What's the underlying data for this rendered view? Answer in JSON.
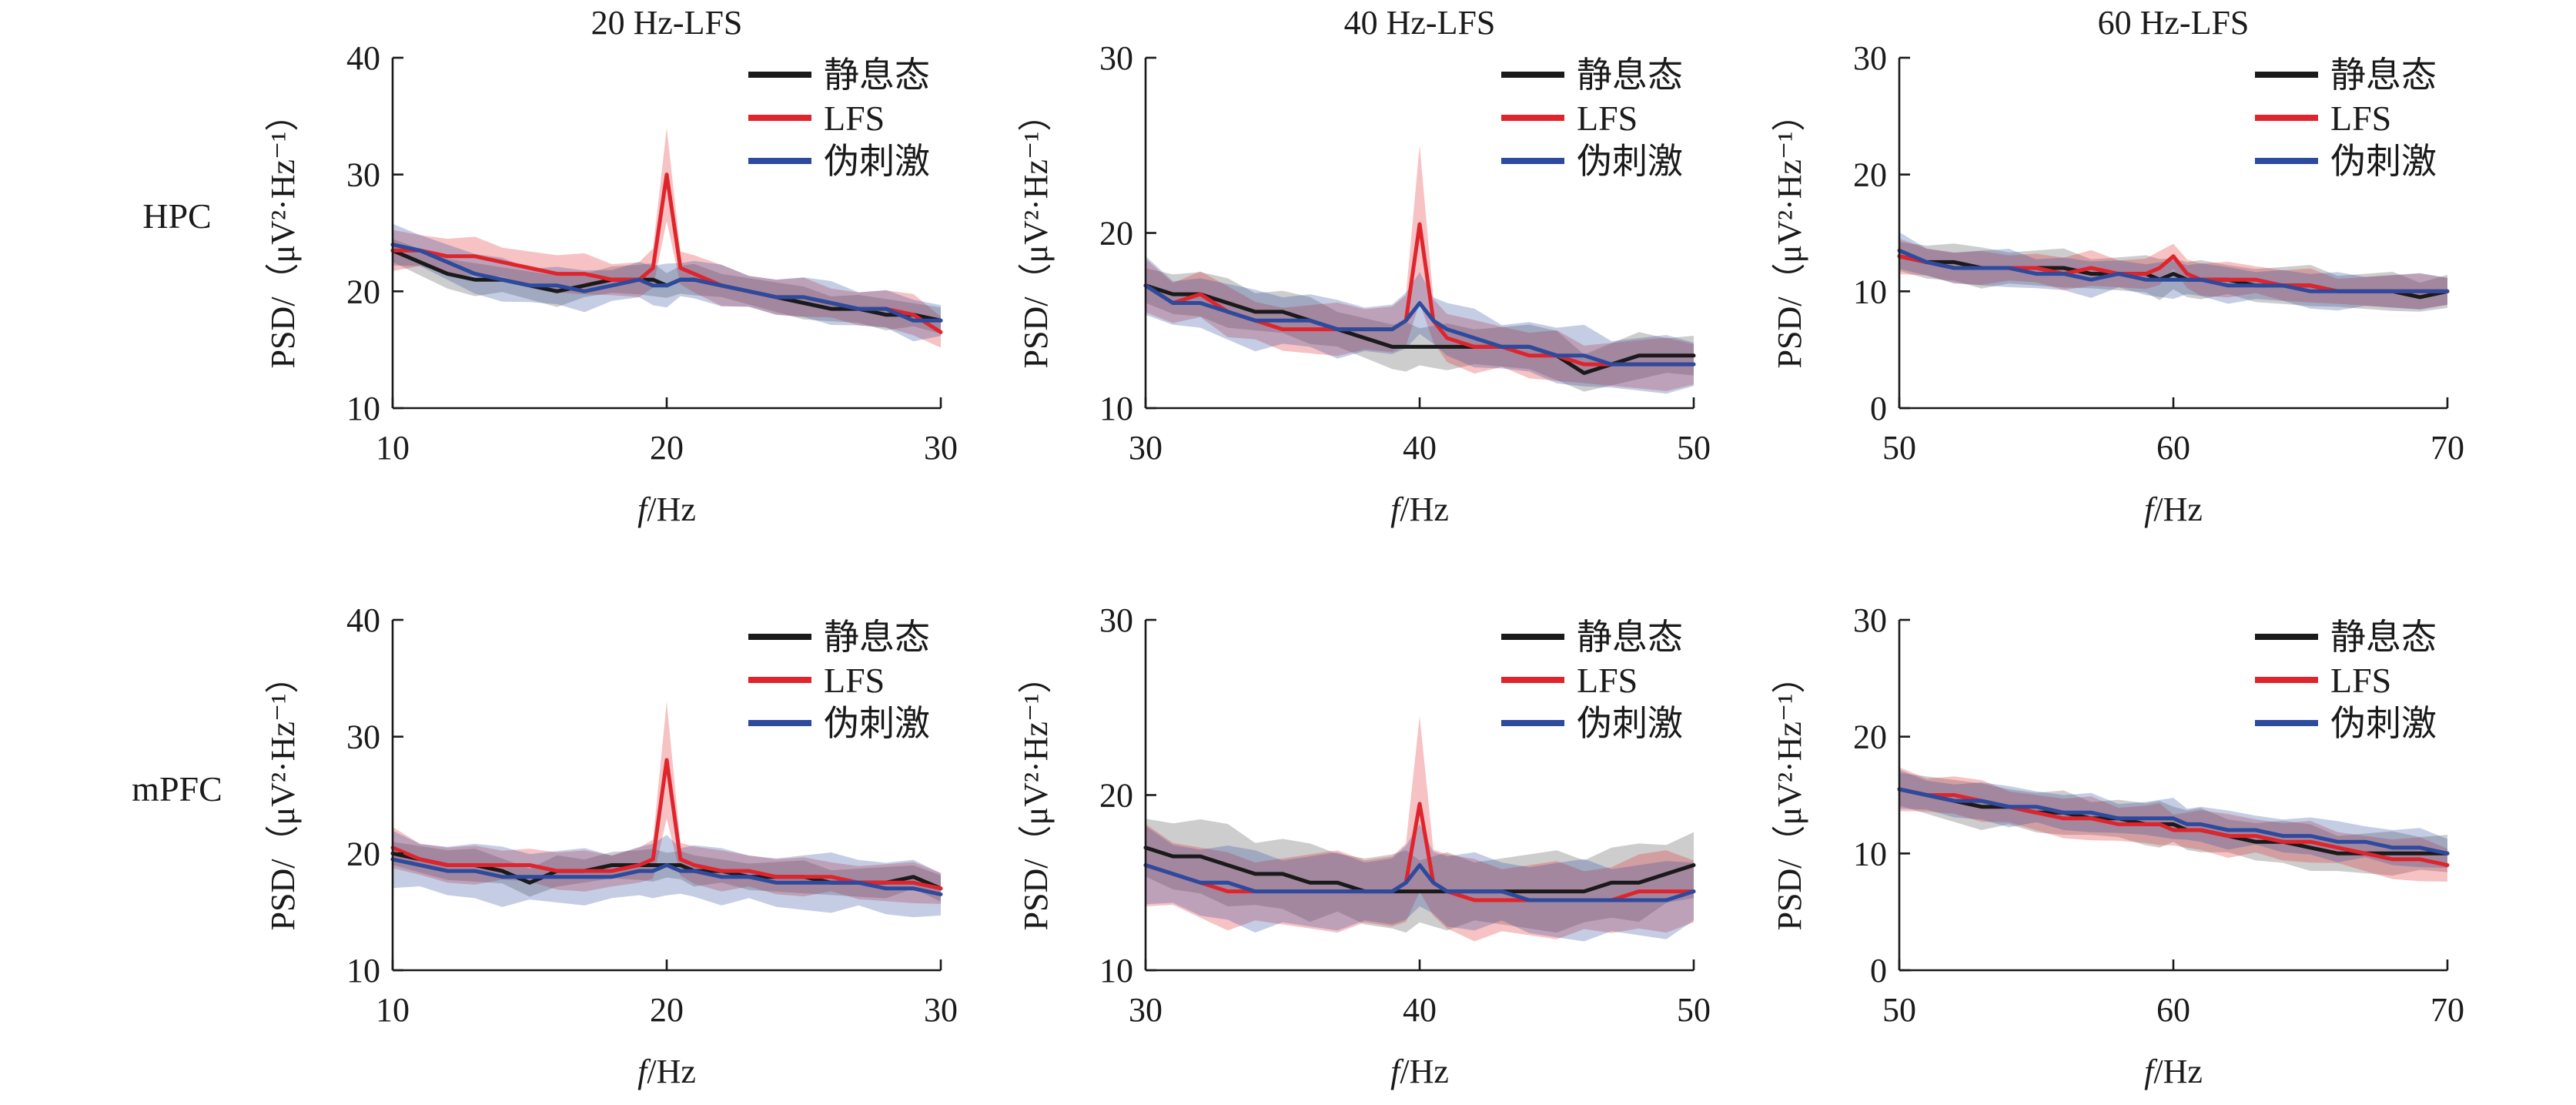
{
  "colors": {
    "静息态": "#1a1a1a",
    "LFS": "#e0242c",
    "伪刺激": "#2c4a9e"
  },
  "row_labels": [
    "HPC",
    "mPFC"
  ],
  "chart_data": [
    {
      "type": "line",
      "title": "20 Hz-LFS",
      "row": "HPC",
      "xlabel_italic": "f",
      "xlabel_unit": "/Hz",
      "ylabel": "PSD/（μV²·Hz⁻¹）",
      "xlim": [
        10,
        30
      ],
      "ylim": [
        10,
        40
      ],
      "xticks": [
        10,
        20,
        30
      ],
      "yticks": [
        10,
        20,
        30,
        40
      ],
      "legend": "top-right",
      "x": [
        10,
        11,
        12,
        13,
        14,
        15,
        16,
        17,
        18,
        19,
        19.5,
        20,
        20.5,
        21,
        22,
        23,
        24,
        25,
        26,
        27,
        28,
        29,
        30
      ],
      "series": [
        {
          "name": "静息态",
          "values": [
            23.5,
            22.5,
            21.5,
            21,
            21,
            20.5,
            20,
            20.5,
            21,
            21,
            21,
            20.5,
            21,
            21,
            20.5,
            20,
            19.5,
            19,
            18.5,
            18.5,
            18,
            18,
            17.5
          ],
          "band": 1.2
        },
        {
          "name": "LFS",
          "values": [
            23.5,
            23.5,
            23,
            23,
            22.5,
            22,
            21.5,
            21.5,
            21,
            21,
            22,
            30,
            22,
            21.5,
            20.5,
            20,
            19.5,
            19.5,
            19,
            18.5,
            18.5,
            18,
            16.5
          ],
          "band": 1.5,
          "peak_band": 4
        },
        {
          "name": "伪刺激",
          "values": [
            24,
            23.5,
            22.5,
            21.5,
            21,
            20.5,
            20.5,
            20,
            20.5,
            21,
            20.5,
            20.5,
            21,
            21,
            20.5,
            20,
            19.5,
            19.5,
            19,
            18.5,
            18.5,
            17.5,
            17.5
          ],
          "band": 1.6
        }
      ]
    },
    {
      "type": "line",
      "title": "40 Hz-LFS",
      "row": "HPC",
      "xlabel_italic": "f",
      "xlabel_unit": "/Hz",
      "ylabel": "PSD/（μV²·Hz⁻¹）",
      "xlim": [
        30,
        50
      ],
      "ylim": [
        10,
        30
      ],
      "xticks": [
        30,
        40,
        50
      ],
      "yticks": [
        10,
        20,
        30
      ],
      "legend": "top-right",
      "x": [
        30,
        31,
        32,
        33,
        34,
        35,
        36,
        37,
        38,
        39,
        39.5,
        40,
        40.5,
        41,
        42,
        43,
        44,
        45,
        46,
        47,
        48,
        49,
        50
      ],
      "series": [
        {
          "name": "静息态",
          "values": [
            17,
            16.5,
            16.5,
            16,
            15.5,
            15.5,
            15,
            14.5,
            14,
            13.5,
            13.5,
            13.5,
            13.5,
            13.5,
            13.5,
            13.5,
            13.5,
            13,
            12,
            12.5,
            13,
            13,
            13
          ],
          "band": 1.2
        },
        {
          "name": "LFS",
          "values": [
            17,
            16,
            16.5,
            15.5,
            15,
            14.5,
            14.5,
            14.5,
            14.5,
            14.5,
            15,
            20.5,
            15,
            14,
            13.5,
            13.5,
            13,
            13,
            12.5,
            12.5,
            12.5,
            12.5,
            12.5
          ],
          "band": 1.3,
          "peak_band": 4.5
        },
        {
          "name": "伪刺激",
          "values": [
            17,
            16,
            16,
            15.5,
            15,
            15,
            15,
            14.5,
            14.5,
            14.5,
            15,
            16,
            15,
            14.5,
            14,
            13.5,
            13.5,
            13,
            13,
            12.5,
            12.5,
            12.5,
            12.5
          ],
          "band": 1.5
        }
      ]
    },
    {
      "type": "line",
      "title": "60 Hz-LFS",
      "row": "HPC",
      "xlabel_italic": "f",
      "xlabel_unit": "/Hz",
      "ylabel": "PSD/（μV²·Hz⁻¹）",
      "xlim": [
        50,
        70
      ],
      "ylim": [
        0,
        30
      ],
      "xticks": [
        50,
        60,
        70
      ],
      "yticks": [
        0,
        10,
        20,
        30
      ],
      "legend": "top-right",
      "x": [
        50,
        51,
        52,
        53,
        54,
        55,
        56,
        57,
        58,
        59,
        59.5,
        60,
        60.5,
        61,
        62,
        63,
        64,
        65,
        66,
        67,
        68,
        69,
        70
      ],
      "series": [
        {
          "name": "静息态",
          "values": [
            13,
            12.5,
            12.5,
            12,
            12,
            12,
            12,
            11.5,
            11.5,
            11.5,
            11,
            11.5,
            11,
            11,
            11,
            10.5,
            10.5,
            10.5,
            10,
            10,
            10,
            9.5,
            10
          ],
          "band": 1.5
        },
        {
          "name": "LFS",
          "values": [
            13,
            12.5,
            12,
            12,
            12,
            12,
            11.5,
            12,
            11.5,
            11.5,
            12,
            13,
            11.5,
            11,
            11,
            11,
            10.5,
            10.5,
            10,
            10,
            10,
            10,
            10
          ],
          "band": 1.3
        },
        {
          "name": "伪刺激",
          "values": [
            13.5,
            12.5,
            12,
            12,
            12,
            11.5,
            11.5,
            11,
            11.5,
            11,
            11,
            11,
            11,
            11,
            10.5,
            10.5,
            10.5,
            10,
            10,
            10,
            10,
            10,
            10
          ],
          "band": 1.4
        }
      ]
    },
    {
      "type": "line",
      "title": "",
      "row": "mPFC",
      "xlabel_italic": "f",
      "xlabel_unit": "/Hz",
      "ylabel": "PSD/（μV²·Hz⁻¹）",
      "xlim": [
        10,
        30
      ],
      "ylim": [
        10,
        40
      ],
      "xticks": [
        10,
        20,
        30
      ],
      "yticks": [
        10,
        20,
        30,
        40
      ],
      "legend": "top-right",
      "x": [
        10,
        11,
        12,
        13,
        14,
        15,
        16,
        17,
        18,
        19,
        19.5,
        20,
        20.5,
        21,
        22,
        23,
        24,
        25,
        26,
        27,
        28,
        29,
        30
      ],
      "series": [
        {
          "name": "静息态",
          "values": [
            20,
            19.5,
            19,
            19,
            18.5,
            17.5,
            18.5,
            18.5,
            19,
            19,
            19,
            19,
            19,
            18.5,
            18.5,
            18,
            18,
            18,
            17.5,
            17.5,
            17.5,
            18,
            17
          ],
          "band": 1.2
        },
        {
          "name": "LFS",
          "values": [
            20.5,
            19.5,
            19,
            19,
            19,
            19,
            18.5,
            18.5,
            18.5,
            19,
            19.5,
            28,
            19.5,
            19,
            18.5,
            18.5,
            18,
            18,
            18,
            17.5,
            17.5,
            17.5,
            17
          ],
          "band": 1.5,
          "peak_band": 5
        },
        {
          "name": "伪刺激",
          "values": [
            19.5,
            19,
            18.5,
            18.5,
            18,
            18,
            18,
            18,
            18,
            18.5,
            18.5,
            19,
            18.5,
            18.5,
            18,
            18,
            17.5,
            17.5,
            17.5,
            17.5,
            17,
            17,
            16.5
          ],
          "band": 2.2
        }
      ]
    },
    {
      "type": "line",
      "title": "",
      "row": "mPFC",
      "xlabel_italic": "f",
      "xlabel_unit": "/Hz",
      "ylabel": "PSD/（μV²·Hz⁻¹）",
      "xlim": [
        30,
        50
      ],
      "ylim": [
        10,
        30
      ],
      "xticks": [
        30,
        40,
        50
      ],
      "yticks": [
        10,
        20,
        30
      ],
      "legend": "top-right",
      "x": [
        30,
        31,
        32,
        33,
        34,
        35,
        36,
        37,
        38,
        39,
        39.5,
        40,
        40.5,
        41,
        42,
        43,
        44,
        45,
        46,
        47,
        48,
        49,
        50
      ],
      "series": [
        {
          "name": "静息态",
          "values": [
            17,
            16.5,
            16.5,
            16,
            15.5,
            15.5,
            15,
            15,
            14.5,
            14.5,
            14.5,
            14.5,
            14.5,
            14.5,
            14.5,
            14.5,
            14.5,
            14.5,
            14.5,
            15,
            15,
            15.5,
            16
          ],
          "band": 2
        },
        {
          "name": "LFS",
          "values": [
            16,
            15.5,
            15,
            14.5,
            14.5,
            14.5,
            14.5,
            14.5,
            14.5,
            14.5,
            15,
            19.5,
            15,
            14.5,
            14,
            14,
            14,
            14,
            14,
            14,
            14.5,
            14.5,
            14.5
          ],
          "band": 2,
          "peak_band": 5
        },
        {
          "name": "伪刺激",
          "values": [
            16,
            15.5,
            15,
            15,
            14.5,
            14.5,
            14.5,
            14.5,
            14.5,
            14.5,
            15,
            16,
            15,
            14.5,
            14.5,
            14.5,
            14,
            14,
            14,
            14,
            14,
            14,
            14.5
          ],
          "band": 2
        }
      ]
    },
    {
      "type": "line",
      "title": "",
      "row": "mPFC",
      "xlabel_italic": "f",
      "xlabel_unit": "/Hz",
      "ylabel": "PSD/（μV²·Hz⁻¹）",
      "xlim": [
        50,
        70
      ],
      "ylim": [
        0,
        30
      ],
      "xticks": [
        50,
        60,
        70
      ],
      "yticks": [
        0,
        10,
        20,
        30
      ],
      "legend": "top-right",
      "x": [
        50,
        51,
        52,
        53,
        54,
        55,
        56,
        57,
        58,
        59,
        59.5,
        60,
        60.5,
        61,
        62,
        63,
        64,
        65,
        66,
        67,
        68,
        69,
        70
      ],
      "series": [
        {
          "name": "静息态",
          "values": [
            15.5,
            15,
            14.5,
            14,
            14,
            13.5,
            13.5,
            13,
            13,
            12.5,
            12.5,
            12.5,
            12,
            12,
            11.5,
            11,
            11,
            10.5,
            10,
            10,
            10,
            10,
            10
          ],
          "band": 1.7
        },
        {
          "name": "LFS",
          "values": [
            15.5,
            15,
            15,
            14.5,
            14,
            13.5,
            13,
            13,
            12.5,
            12.5,
            12.5,
            12,
            12,
            12,
            11.5,
            11.5,
            11,
            11,
            10.5,
            10,
            9.5,
            9.5,
            9
          ],
          "band": 1.6
        },
        {
          "name": "伪刺激",
          "values": [
            15.5,
            15,
            14.5,
            14.5,
            14,
            14,
            13.5,
            13.5,
            13,
            13,
            13,
            13,
            12.5,
            12.5,
            12,
            12,
            11.5,
            11.5,
            11,
            11,
            10.5,
            10.5,
            10
          ],
          "band": 1.5
        }
      ]
    }
  ]
}
